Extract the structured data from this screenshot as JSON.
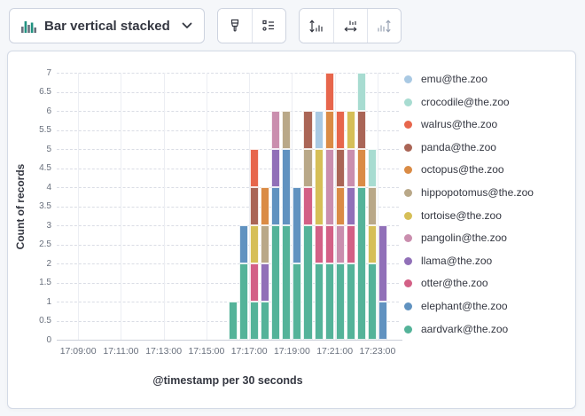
{
  "toolbar": {
    "chart_switcher_label": "Bar vertical stacked",
    "buttons": [
      {
        "id": "visual-options",
        "icon": "paintbrush-icon",
        "disabled": false
      },
      {
        "id": "legend-settings",
        "icon": "legend-icon",
        "disabled": false
      },
      {
        "id": "left-axis-settings",
        "icon": "left-axis-icon",
        "disabled": false
      },
      {
        "id": "bottom-axis-settings",
        "icon": "bottom-axis-icon",
        "disabled": false
      },
      {
        "id": "right-axis-settings",
        "icon": "right-axis-icon",
        "disabled": true
      }
    ]
  },
  "chart_data": {
    "type": "bar",
    "stacked": true,
    "ylabel": "Count of records",
    "xlabel": "@timestamp per 30 seconds",
    "ylim": [
      0,
      7
    ],
    "y_tick_step": 0.5,
    "grid": true,
    "legend_position": "right",
    "x_domain": [
      "17:08:00",
      "17:24:00"
    ],
    "bucket_seconds": 30,
    "x_ticks": [
      "17:09:00",
      "17:11:00",
      "17:13:00",
      "17:15:00",
      "17:17:00",
      "17:19:00",
      "17:21:00",
      "17:23:00"
    ],
    "categories": [
      "17:16:00",
      "17:16:30",
      "17:17:00",
      "17:17:30",
      "17:18:00",
      "17:18:30",
      "17:19:00",
      "17:19:30",
      "17:20:00",
      "17:20:30",
      "17:21:00",
      "17:21:30",
      "17:22:00",
      "17:22:30",
      "17:23:00"
    ],
    "stack_order": "bottom_to_top",
    "series": [
      {
        "name": "aardvark@the.zoo",
        "color": "#54B399",
        "values": [
          1,
          2,
          1,
          1,
          3,
          3,
          2,
          3,
          2,
          2,
          2,
          2,
          4,
          2,
          0
        ]
      },
      {
        "name": "elephant@the.zoo",
        "color": "#6092C0",
        "values": [
          0,
          1,
          0,
          0,
          1,
          2,
          2,
          0,
          0,
          0,
          0,
          0,
          0,
          0,
          1
        ]
      },
      {
        "name": "otter@the.zoo",
        "color": "#D36086",
        "values": [
          0,
          0,
          1,
          0,
          0,
          0,
          0,
          1,
          1,
          1,
          0,
          1,
          0,
          0,
          0
        ]
      },
      {
        "name": "llama@the.zoo",
        "color": "#9170B8",
        "values": [
          0,
          0,
          0,
          1,
          1,
          0,
          0,
          0,
          0,
          0,
          0,
          1,
          0,
          0,
          2
        ]
      },
      {
        "name": "pangolin@the.zoo",
        "color": "#CA8EAE",
        "values": [
          0,
          0,
          0,
          0,
          1,
          0,
          0,
          0,
          0,
          2,
          1,
          1,
          0,
          0,
          0
        ]
      },
      {
        "name": "tortoise@the.zoo",
        "color": "#D6BF57",
        "values": [
          0,
          0,
          1,
          0,
          0,
          0,
          0,
          0,
          2,
          0,
          0,
          1,
          0,
          1,
          0
        ]
      },
      {
        "name": "hippopotomus@the.zoo",
        "color": "#B9A888",
        "values": [
          0,
          0,
          0,
          1,
          0,
          1,
          0,
          1,
          0,
          0,
          0,
          0,
          0,
          1,
          0
        ]
      },
      {
        "name": "octopus@the.zoo",
        "color": "#DA8B45",
        "values": [
          0,
          0,
          0,
          1,
          0,
          0,
          0,
          0,
          0,
          1,
          1,
          0,
          1,
          0,
          0
        ]
      },
      {
        "name": "panda@the.zoo",
        "color": "#AA6556",
        "values": [
          0,
          0,
          1,
          0,
          0,
          0,
          0,
          1,
          0,
          0,
          1,
          0,
          1,
          0,
          0
        ]
      },
      {
        "name": "walrus@the.zoo",
        "color": "#E7664C",
        "values": [
          0,
          0,
          1,
          0,
          0,
          0,
          0,
          0,
          0,
          1,
          1,
          0,
          0,
          0,
          0
        ]
      },
      {
        "name": "crocodile@the.zoo",
        "color": "#A8DCD1",
        "values": [
          0,
          0,
          0,
          0,
          0,
          0,
          0,
          0,
          0,
          0,
          0,
          0,
          1,
          1,
          0
        ]
      },
      {
        "name": "emu@the.zoo",
        "color": "#A9C9E3",
        "values": [
          0,
          0,
          0,
          0,
          0,
          0,
          0,
          0,
          1,
          0,
          0,
          0,
          0,
          0,
          0
        ]
      }
    ],
    "legend_items_top_to_bottom": [
      "emu@the.zoo",
      "crocodile@the.zoo",
      "walrus@the.zoo",
      "panda@the.zoo",
      "octopus@the.zoo",
      "hippopotomus@the.zoo",
      "tortoise@the.zoo",
      "pangolin@the.zoo",
      "llama@the.zoo",
      "otter@the.zoo",
      "elephant@the.zoo",
      "aardvark@the.zoo"
    ]
  },
  "icon_colors": {
    "chart_icon_green": "#209280",
    "chart_icon_gray": "#69707D",
    "toolbar_icon": "#343741",
    "toolbar_icon_disabled": "#9aa4b5"
  }
}
